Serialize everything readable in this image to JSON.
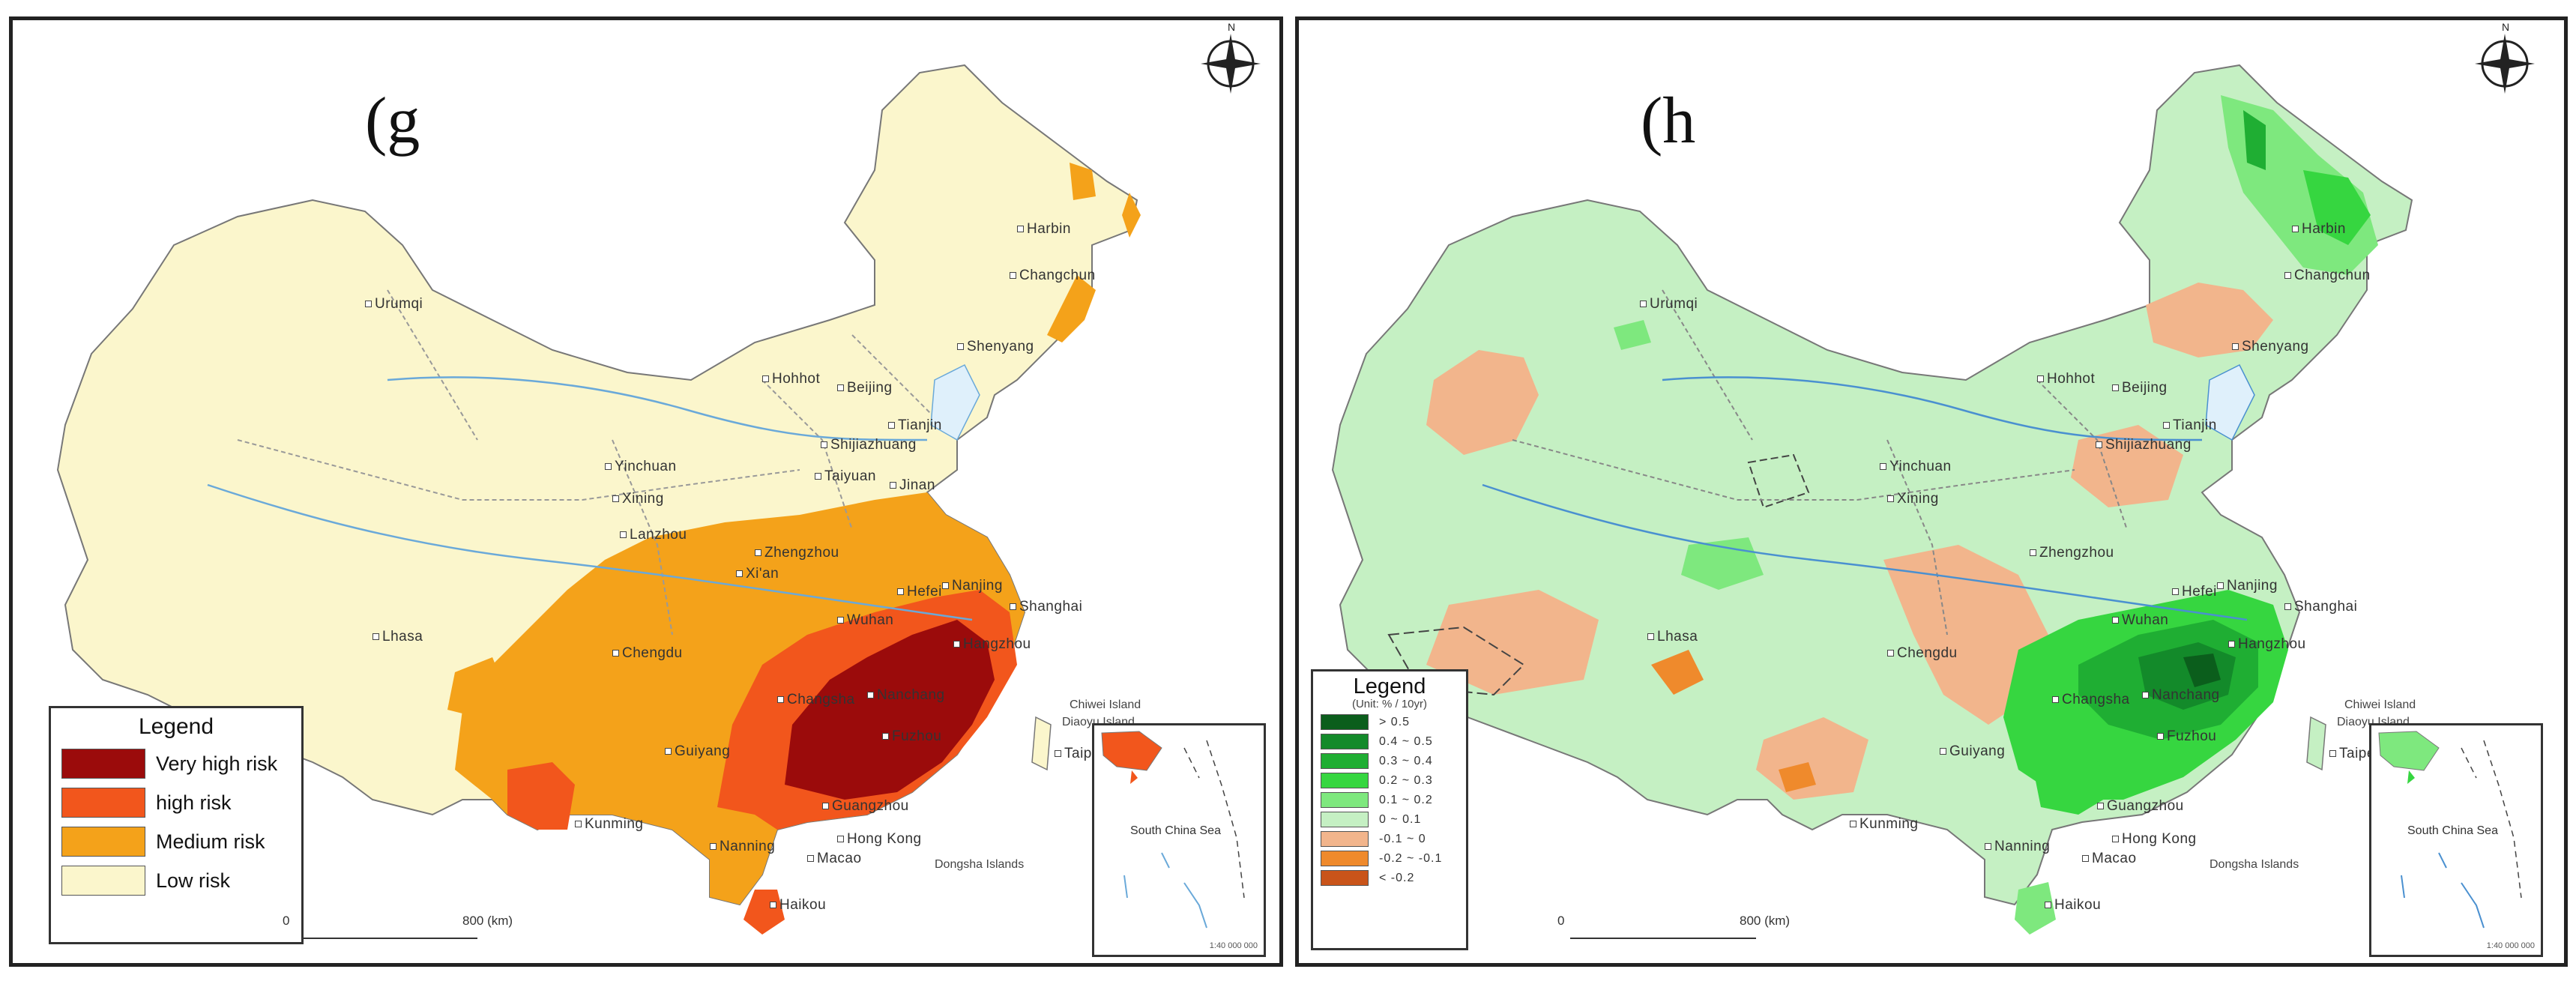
{
  "panel_g": {
    "letter": "(g",
    "legend": {
      "title": "Legend",
      "items": [
        {
          "label": "Very high risk",
          "color": "#9b0b0b"
        },
        {
          "label": "high risk",
          "color": "#f2561c"
        },
        {
          "label": "Medium risk",
          "color": "#f4a21a"
        },
        {
          "label": "Low risk",
          "color": "#fbf6cc"
        }
      ]
    },
    "cities": {
      "harbin": "Harbin",
      "changchun": "Changchun",
      "shenyang": "Shenyang",
      "hohhot": "Hohhot",
      "beijing": "Beijing",
      "tianjin": "Tianjin",
      "shijiazhuang": "Shijiazhuang",
      "taiyuan": "Taiyuan",
      "yinchuan": "Yinchuan",
      "xining": "Xining",
      "lanzhou": "Lanzhou",
      "jinan": "Jinan",
      "zhengzhou": "Zhengzhou",
      "xian": "Xi'an",
      "hefei": "Hefei",
      "nanjing": "Nanjing",
      "shanghai": "Shanghai",
      "hangzhou": "Hangzhou",
      "wuhan": "Wuhan",
      "chengdu": "Chengdu",
      "changsha": "Changsha",
      "nanchang": "Nanchang",
      "fuzhou": "Fuzhou",
      "guiyang": "Guiyang",
      "kunming": "Kunming",
      "guangzhou": "Guangzhou",
      "nanning": "Nanning",
      "hongkong": "Hong Kong",
      "macao": "Macao",
      "haikou": "Haikou",
      "lhasa": "Lhasa",
      "urumqi": "Urumqi",
      "taipei": "Taipei"
    },
    "places": {
      "diaoyu": "Diaoyu Island",
      "chiwei": "Chiwei Island",
      "dongsha": "Dongsha Islands"
    },
    "inset_label": "South China Sea",
    "inset_scale": "1:40 000 000",
    "scale_zero": "0",
    "scale_label": "800 (km)",
    "compass_letter": "N"
  },
  "panel_h": {
    "letter": "(h",
    "legend": {
      "title": "Legend",
      "unit": "(Unit: % / 10yr)",
      "items": [
        {
          "label": "> 0.5",
          "color": "#0b5e1c"
        },
        {
          "label": "0.4 ~ 0.5",
          "color": "#138a2a"
        },
        {
          "label": "0.3 ~ 0.4",
          "color": "#1fae33"
        },
        {
          "label": "0.2 ~ 0.3",
          "color": "#36d640"
        },
        {
          "label": "0.1 ~ 0.2",
          "color": "#7ee87e"
        },
        {
          "label": "0 ~ 0.1",
          "color": "#c5f0c3"
        },
        {
          "label": "-0.1 ~ 0",
          "color": "#f2b58c"
        },
        {
          "label": "-0.2 ~ -0.1",
          "color": "#ef8a2c"
        },
        {
          "label": "< -0.2",
          "color": "#c9541a"
        }
      ]
    },
    "cities": {
      "harbin": "Harbin",
      "changchun": "Changchun",
      "shenyang": "Shenyang",
      "hohhot": "Hohhot",
      "beijing": "Beijing",
      "tianjin": "Tianjin",
      "shijiazhuang": "Shijiazhuang",
      "yinchuan": "Yinchuan",
      "xining": "Xining",
      "zhengzhou": "Zhengzhou",
      "hefei": "Hefei",
      "nanjing": "Nanjing",
      "shanghai": "Shanghai",
      "hangzhou": "Hangzhou",
      "wuhan": "Wuhan",
      "chengdu": "Chengdu",
      "changsha": "Changsha",
      "nanchang": "Nanchang",
      "fuzhou": "Fuzhou",
      "guiyang": "Guiyang",
      "kunming": "Kunming",
      "guangzhou": "Guangzhou",
      "nanning": "Nanning",
      "hongkong": "Hong Kong",
      "macao": "Macao",
      "haikou": "Haikou",
      "lhasa": "Lhasa",
      "urumqi": "Urumqi",
      "taipei": "Taipei"
    },
    "places": {
      "diaoyu": "Diaoyu Island",
      "chiwei": "Chiwei Island",
      "dongsha": "Dongsha Islands"
    },
    "inset_label": "South China Sea",
    "inset_scale": "1:40 000 000",
    "scale_zero": "0",
    "scale_label": "800 (km)",
    "compass_letter": "N"
  }
}
